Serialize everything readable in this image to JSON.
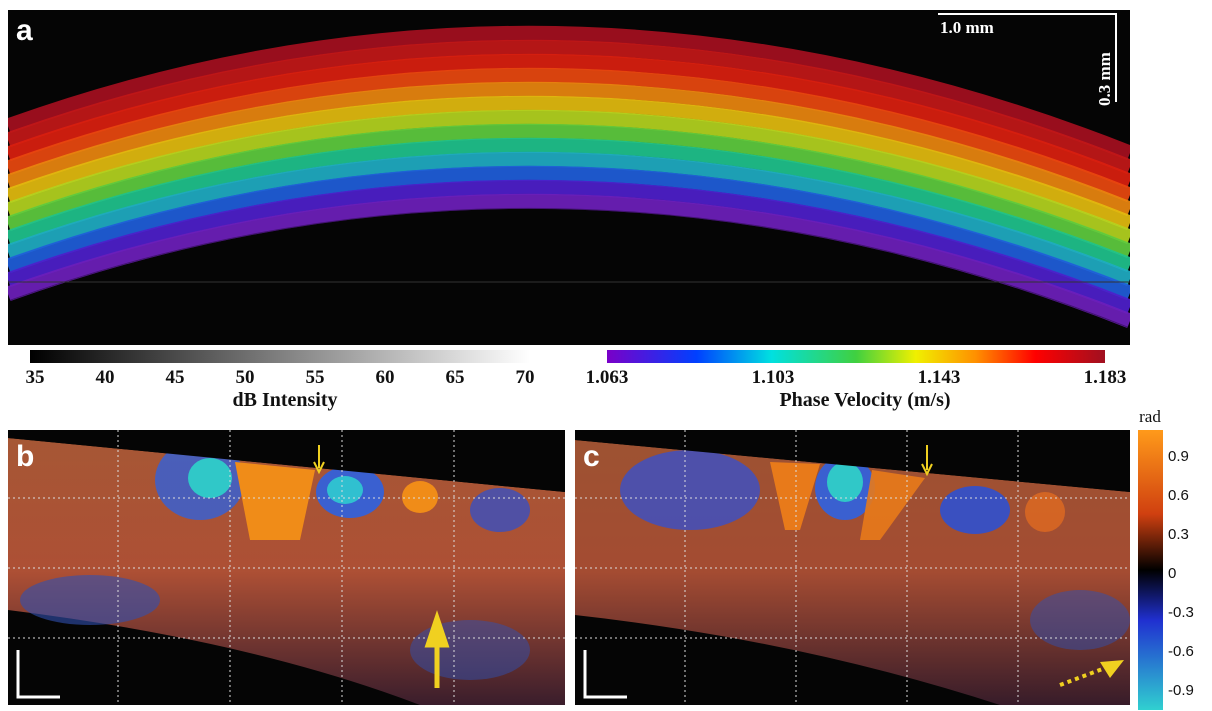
{
  "panel_a": {
    "label": "a",
    "scale_x": "1.0 mm",
    "scale_y": "0.3 mm"
  },
  "colorbar_intensity": {
    "ticks": [
      35,
      40,
      45,
      50,
      55,
      60,
      65,
      70
    ],
    "title": "dB Intensity"
  },
  "colorbar_velocity": {
    "ticks": [
      1.063,
      1.103,
      1.143,
      1.183
    ],
    "title": "Phase Velocity (m/s)"
  },
  "panel_b": {
    "label": "b"
  },
  "panel_c": {
    "label": "c"
  },
  "colorbar_phase": {
    "unit": "rad",
    "ticks": [
      0.9,
      0.6,
      0.3,
      0,
      -0.3,
      -0.6,
      -0.9
    ]
  }
}
